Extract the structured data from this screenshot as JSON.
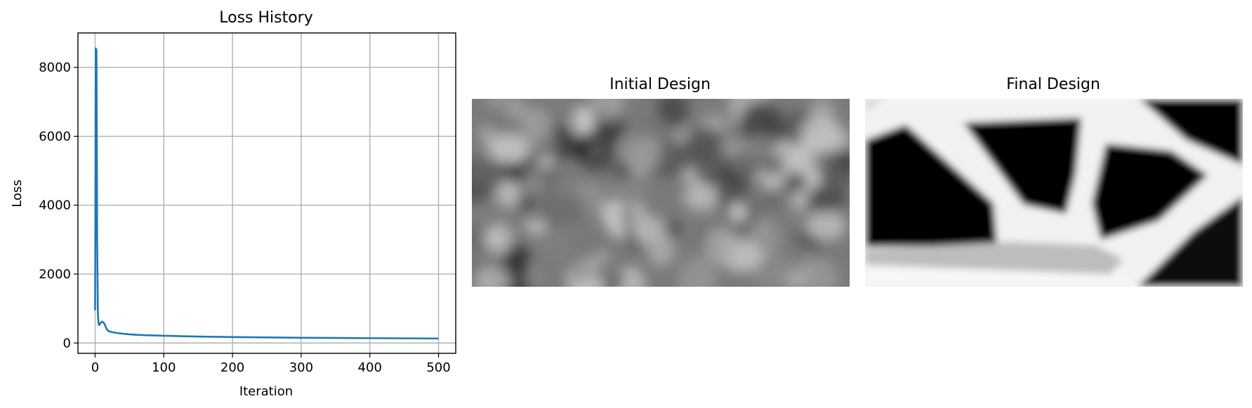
{
  "chart_data": [
    {
      "type": "line",
      "title": "Loss History",
      "xlabel": "Iteration",
      "ylabel": "Loss",
      "xlim": [
        -25,
        525
      ],
      "ylim": [
        -300,
        9000
      ],
      "xticks": [
        0,
        100,
        200,
        300,
        400,
        500
      ],
      "yticks": [
        0,
        2000,
        4000,
        6000,
        8000
      ],
      "grid": true,
      "series": [
        {
          "color": "#1f77b4",
          "x": [
            0,
            1,
            2,
            3,
            4,
            5,
            6,
            7,
            8,
            10,
            12,
            14,
            16,
            18,
            20,
            25,
            30,
            40,
            50,
            60,
            75,
            100,
            125,
            150,
            200,
            250,
            300,
            350,
            400,
            450,
            500
          ],
          "y": [
            950,
            8550,
            8500,
            3000,
            900,
            560,
            520,
            560,
            580,
            620,
            600,
            540,
            440,
            370,
            340,
            315,
            295,
            270,
            250,
            238,
            225,
            210,
            198,
            188,
            172,
            162,
            152,
            146,
            140,
            135,
            130
          ]
        }
      ]
    },
    {
      "type": "heatmap",
      "title": "Initial Design",
      "colormap": "gray",
      "description_values": "density field 0-1 (mid grey noise)"
    },
    {
      "type": "heatmap",
      "title": "Final Design",
      "colormap": "gray",
      "description_values": "density field 0-1 (truss topology)"
    }
  ]
}
